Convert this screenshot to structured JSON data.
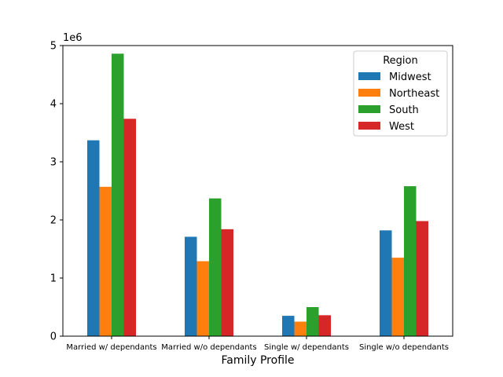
{
  "chart_data": {
    "type": "bar",
    "xlabel": "Family Profile",
    "ylabel": "",
    "offset_text": "1e6",
    "ylim": [
      0,
      5000000
    ],
    "yticks": [
      0,
      1000000,
      2000000,
      3000000,
      4000000,
      5000000
    ],
    "ytick_labels": [
      "0",
      "1",
      "2",
      "3",
      "4",
      "5"
    ],
    "categories": [
      "Married w/ dependants",
      "Married w/o dependants",
      "Single w/ dependants",
      "Single w/o dependants"
    ],
    "legend": {
      "title": "Region",
      "position": "top-right"
    },
    "grid": false,
    "series": [
      {
        "name": "Midwest",
        "color": "#1f77b4",
        "values": [
          3370000,
          1710000,
          350000,
          1820000
        ]
      },
      {
        "name": "Northeast",
        "color": "#ff7f0e",
        "values": [
          2570000,
          1290000,
          250000,
          1350000
        ]
      },
      {
        "name": "South",
        "color": "#2ca02c",
        "values": [
          4860000,
          2370000,
          500000,
          2580000
        ]
      },
      {
        "name": "West",
        "color": "#d62728",
        "values": [
          3740000,
          1840000,
          360000,
          1980000
        ]
      }
    ]
  }
}
